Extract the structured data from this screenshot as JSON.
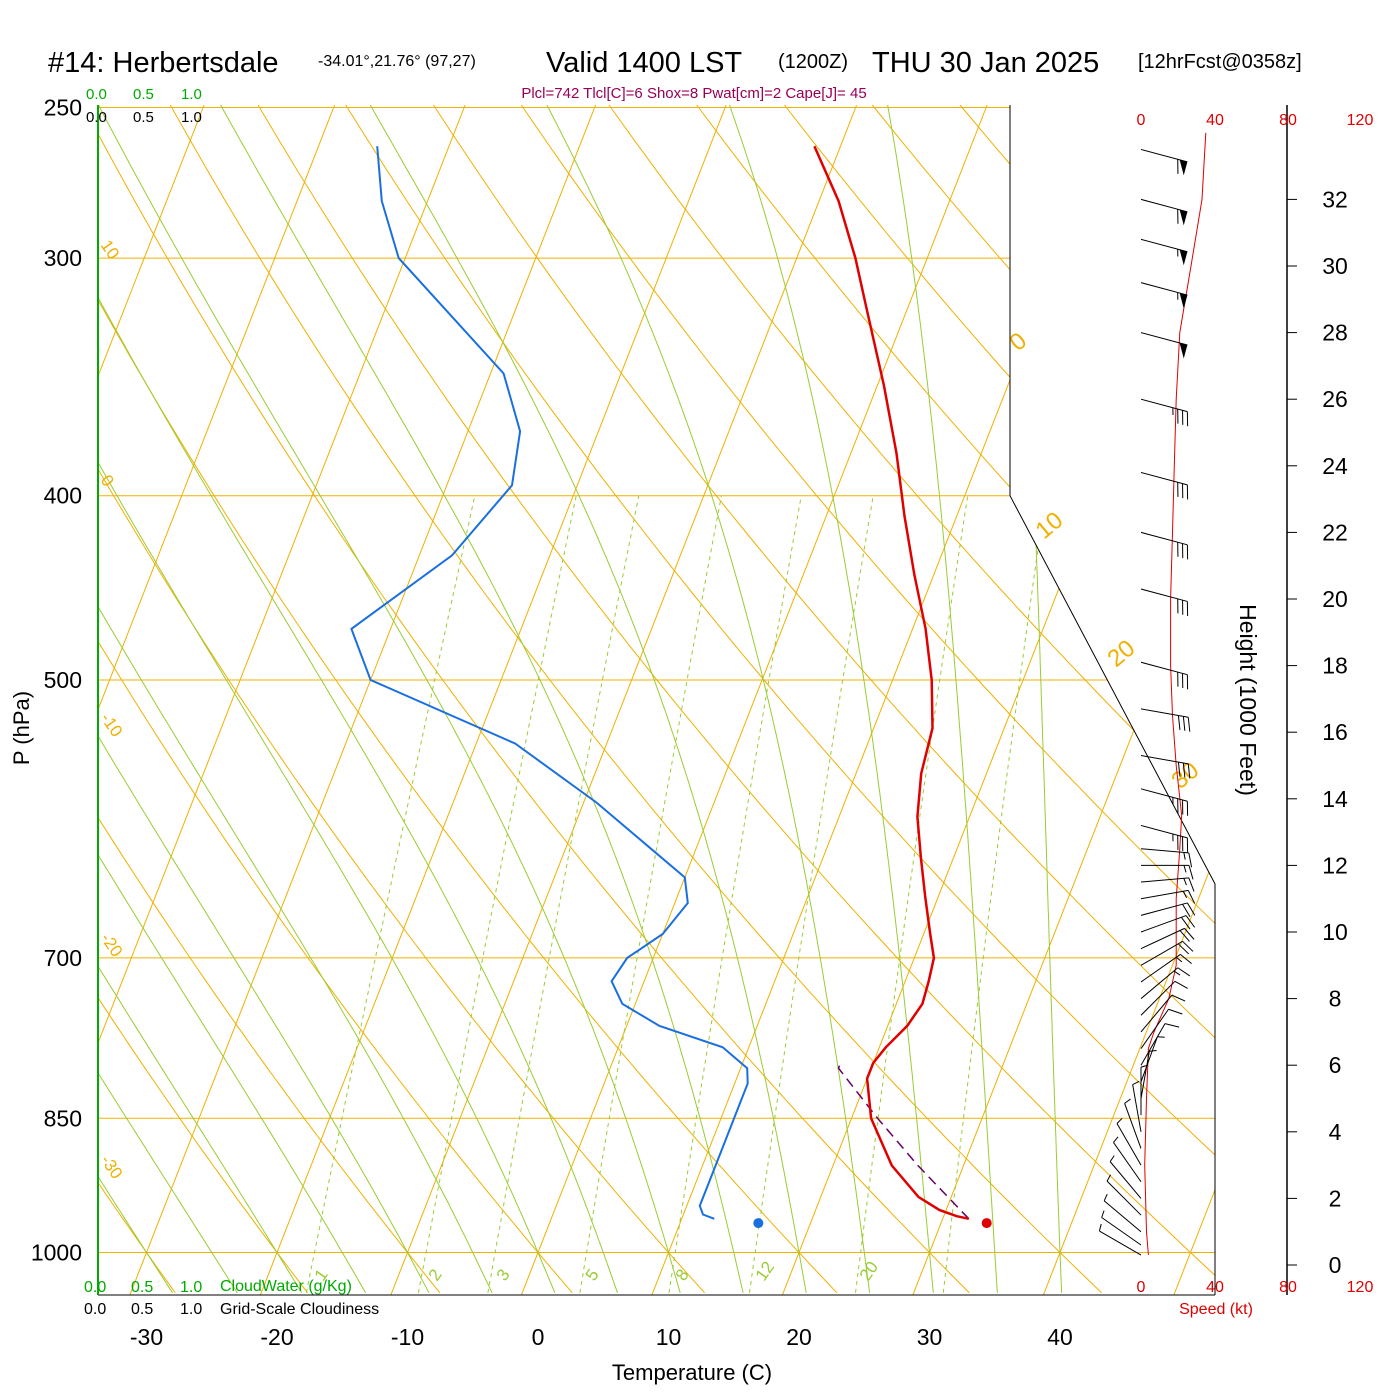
{
  "header": {
    "station": "#14: Herbertsdale",
    "coords": "-34.01°,21.76° (97,27)",
    "valid": "Valid 1400 LST",
    "zulu": "(1200Z)",
    "date": "THU 30 Jan 2025",
    "forecast": "[12hrFcst@0358z]",
    "indices": "Plcl=742 Tlcl[C]=6 Shox=8 Pwat[cm]=2 Cape[J]= 45"
  },
  "colors": {
    "background": "#ffffff",
    "isobar": "#f0b000",
    "dry_adiabat": "#f0b000",
    "moist_adiabat": "#99cc33",
    "mixing_ratio": "#99cc33",
    "temperature": "#e00000",
    "dewpoint": "#1a6fe0",
    "parcel": "#660066",
    "cloudwater": "#00aa00",
    "speed": "#e00000",
    "indices": "#990055"
  },
  "scale_labels": {
    "cloudwater_top": [
      "0.0",
      "0.5",
      "1.0"
    ],
    "cloudiness_top": [
      "0.0",
      "0.5",
      "1.0"
    ],
    "cloudwater_bottom": [
      "0.0",
      "0.5",
      "1.0"
    ],
    "cloudiness_bottom": [
      "0.0",
      "0.5",
      "1.0"
    ],
    "cloudwater_title": "CloudWater (g/Kg)",
    "cloudiness_title": "Grid-Scale Cloudiness"
  },
  "chart_data": {
    "type": "skew-t",
    "xlabel": "Temperature (C)",
    "ylabel": "P (hPa)",
    "x_ticks": [
      -30,
      -20,
      -10,
      0,
      10,
      20,
      30,
      40
    ],
    "p_ticks": [
      250,
      300,
      400,
      500,
      700,
      850,
      1000
    ],
    "dry_adiabat_labels": [
      "10",
      "0",
      "-10",
      "-20",
      "-30"
    ],
    "moist_adiabat_labels": [
      "0",
      "10",
      "20",
      "30"
    ],
    "mixing_ratio_labels": [
      "1",
      "2",
      "3",
      "5",
      "8",
      "12",
      "20"
    ],
    "temperature_profile": {
      "name": "Temperature",
      "points": [
        [
          960,
          32.0
        ],
        [
          957,
          31.0
        ],
        [
          950,
          29.5
        ],
        [
          935,
          27.5
        ],
        [
          900,
          24.5
        ],
        [
          850,
          21.5
        ],
        [
          810,
          20.0
        ],
        [
          795,
          20.0
        ],
        [
          780,
          20.5
        ],
        [
          760,
          21.5
        ],
        [
          740,
          22.0
        ],
        [
          720,
          21.8
        ],
        [
          700,
          21.5
        ],
        [
          680,
          20.5
        ],
        [
          650,
          19.0
        ],
        [
          620,
          17.5
        ],
        [
          590,
          16.0
        ],
        [
          560,
          15.0
        ],
        [
          530,
          14.5
        ],
        [
          500,
          13.0
        ],
        [
          470,
          11.0
        ],
        [
          440,
          8.5
        ],
        [
          410,
          6.0
        ],
        [
          380,
          3.5
        ],
        [
          350,
          0.5
        ],
        [
          320,
          -3.0
        ],
        [
          300,
          -5.5
        ],
        [
          280,
          -8.5
        ],
        [
          262,
          -12.0
        ]
      ]
    },
    "dewpoint_profile": {
      "name": "Dewpoint",
      "points": [
        [
          960,
          12.5
        ],
        [
          955,
          11.5
        ],
        [
          945,
          11.0
        ],
        [
          900,
          11.0
        ],
        [
          850,
          11.0
        ],
        [
          815,
          11.0
        ],
        [
          800,
          10.5
        ],
        [
          780,
          8.0
        ],
        [
          760,
          2.5
        ],
        [
          740,
          -1.0
        ],
        [
          720,
          -2.5
        ],
        [
          700,
          -2.0
        ],
        [
          680,
          0.0
        ],
        [
          655,
          1.0
        ],
        [
          635,
          0.0
        ],
        [
          610,
          -4.0
        ],
        [
          580,
          -9.0
        ],
        [
          540,
          -17.0
        ],
        [
          500,
          -30.0
        ],
        [
          470,
          -33.0
        ],
        [
          430,
          -27.5
        ],
        [
          395,
          -25.0
        ],
        [
          370,
          -26.0
        ],
        [
          345,
          -29.0
        ],
        [
          300,
          -40.5
        ],
        [
          280,
          -43.5
        ],
        [
          262,
          -45.5
        ]
      ]
    },
    "parcel_path": {
      "name": "Parcel",
      "points": [
        [
          960,
          32.0
        ],
        [
          900,
          26.5
        ],
        [
          850,
          22.0
        ],
        [
          800,
          17.5
        ],
        [
          795,
          17.5
        ]
      ]
    },
    "surface_temperature": 33.5,
    "surface_dewpoint": 16.0,
    "surface_pressure": 965,
    "wind_profile": {
      "height_unit": "1000 ft",
      "entries": [
        {
          "h": 0.3,
          "speed": 4,
          "dir": 120
        },
        {
          "h": 0.6,
          "speed": 5,
          "dir": 125
        },
        {
          "h": 1.0,
          "speed": 6,
          "dir": 130
        },
        {
          "h": 1.5,
          "speed": 6,
          "dir": 135
        },
        {
          "h": 2.0,
          "speed": 6,
          "dir": 140
        },
        {
          "h": 2.5,
          "speed": 5,
          "dir": 145
        },
        {
          "h": 3.0,
          "speed": 4,
          "dir": 150
        },
        {
          "h": 3.5,
          "speed": 4,
          "dir": 160
        },
        {
          "h": 4.0,
          "speed": 4,
          "dir": 170
        },
        {
          "h": 4.5,
          "speed": 4,
          "dir": 180
        },
        {
          "h": 5.0,
          "speed": 5,
          "dir": 190
        },
        {
          "h": 5.5,
          "speed": 6,
          "dir": 200
        },
        {
          "h": 6.0,
          "speed": 8,
          "dir": 210
        },
        {
          "h": 6.5,
          "speed": 9,
          "dir": 215
        },
        {
          "h": 7.0,
          "speed": 10,
          "dir": 220
        },
        {
          "h": 7.5,
          "speed": 12,
          "dir": 225
        },
        {
          "h": 8.0,
          "speed": 14,
          "dir": 230
        },
        {
          "h": 8.5,
          "speed": 16,
          "dir": 235
        },
        {
          "h": 9.0,
          "speed": 18,
          "dir": 240
        },
        {
          "h": 9.5,
          "speed": 19,
          "dir": 245
        },
        {
          "h": 10.0,
          "speed": 19,
          "dir": 250
        },
        {
          "h": 10.5,
          "speed": 18,
          "dir": 255
        },
        {
          "h": 11.0,
          "speed": 17,
          "dir": 260
        },
        {
          "h": 11.5,
          "speed": 16,
          "dir": 265
        },
        {
          "h": 12.0,
          "speed": 15,
          "dir": 270
        },
        {
          "h": 12.5,
          "speed": 15,
          "dir": 275
        },
        {
          "h": 13.2,
          "speed": 35,
          "dir": 285
        },
        {
          "h": 14.3,
          "speed": 35,
          "dir": 285
        },
        {
          "h": 15.3,
          "speed": 30,
          "dir": 280
        },
        {
          "h": 16.7,
          "speed": 30,
          "dir": 280
        },
        {
          "h": 18.1,
          "speed": 30,
          "dir": 285
        },
        {
          "h": 20.3,
          "speed": 30,
          "dir": 285
        },
        {
          "h": 22.0,
          "speed": 30,
          "dir": 285
        },
        {
          "h": 23.8,
          "speed": 30,
          "dir": 285
        },
        {
          "h": 26.0,
          "speed": 35,
          "dir": 285
        },
        {
          "h": 28.0,
          "speed": 50,
          "dir": 285
        },
        {
          "h": 29.5,
          "speed": 55,
          "dir": 285
        },
        {
          "h": 30.8,
          "speed": 55,
          "dir": 285
        },
        {
          "h": 32.0,
          "speed": 60,
          "dir": 285
        },
        {
          "h": 33.5,
          "speed": 60,
          "dir": 285
        }
      ]
    },
    "speed_profile": {
      "name": "Speed (kt)",
      "points": [
        [
          0.3,
          4
        ],
        [
          1.0,
          3
        ],
        [
          3.0,
          2
        ],
        [
          5.0,
          3
        ],
        [
          6.5,
          4
        ],
        [
          7.0,
          7
        ],
        [
          8.0,
          15
        ],
        [
          9.0,
          19
        ],
        [
          10.0,
          19
        ],
        [
          11.0,
          19
        ],
        [
          12.5,
          21
        ],
        [
          13.5,
          22
        ],
        [
          15.0,
          19
        ],
        [
          16.5,
          17
        ],
        [
          18.0,
          16
        ],
        [
          20.0,
          16
        ],
        [
          22.0,
          17
        ],
        [
          24.0,
          18
        ],
        [
          26.0,
          19
        ],
        [
          28.0,
          21
        ],
        [
          30.0,
          27
        ],
        [
          32.0,
          33
        ],
        [
          34.0,
          35
        ]
      ]
    },
    "height_ticks": [
      0,
      2,
      4,
      6,
      8,
      10,
      12,
      14,
      16,
      18,
      20,
      22,
      24,
      26,
      28,
      30,
      32
    ],
    "speed_ticks": [
      "0",
      "40",
      "80",
      "120"
    ],
    "speed_axis_label": "Speed (kt)",
    "height_axis_label": "Height (1000 Feet)"
  }
}
